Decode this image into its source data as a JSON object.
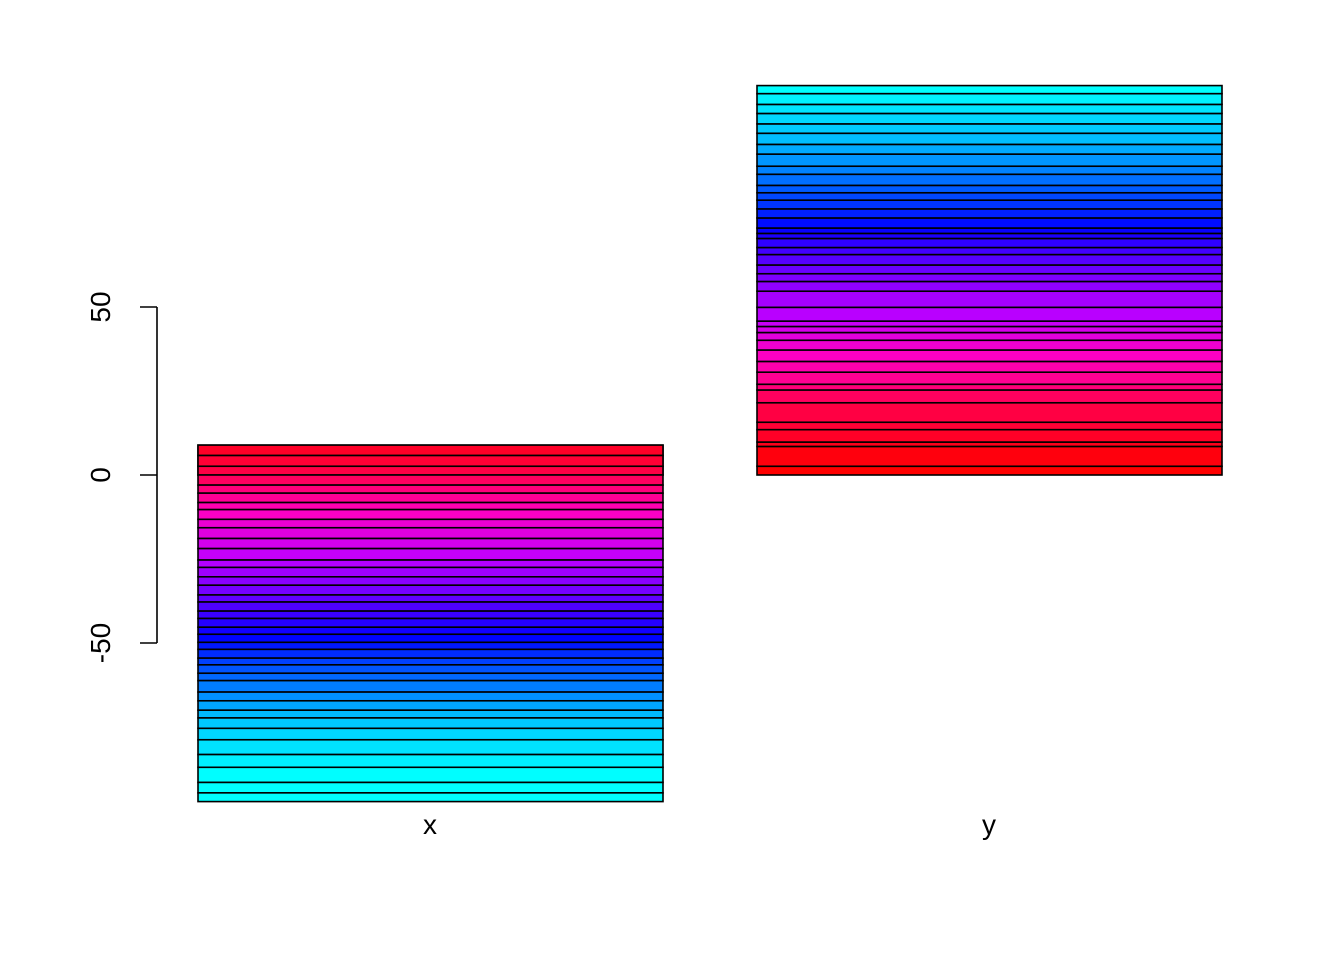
{
  "chart_data": {
    "type": "bar",
    "stacked": true,
    "categories": [
      "x",
      "y"
    ],
    "ylim": [
      -86,
      95
    ],
    "yticks": [
      -50,
      0,
      50
    ],
    "ytick_labels": [
      "-50",
      "0",
      "50"
    ],
    "title": "",
    "xlabel": "",
    "ylabel": "",
    "grid": false,
    "colors": {
      "segment_stroke": "#000000",
      "axis": "#000000",
      "palette_bottom_to_top_y": [
        "#ff0000",
        "#ff0040",
        "#ff00c0",
        "#c000ff",
        "#6000ff",
        "#0000ff",
        "#0060ff",
        "#00c0ff",
        "#00ffff"
      ]
    },
    "bars": [
      {
        "category": "x",
        "segments": [
          8.9,
          -3.1,
          -3.2,
          -2.6,
          -3.0,
          -2.4,
          -2.8,
          -2.1,
          -2.9,
          -2.5,
          -3.2,
          -3.0,
          -3.4,
          -2.2,
          -2.8,
          -2.5,
          -2.9,
          -2.1,
          -2.7,
          -2.2,
          -2.6,
          -2.1,
          -2.4,
          -2.1,
          -2.6,
          -2.0,
          -2.5,
          -2.2,
          -3.4,
          -2.6,
          -2.8,
          -2.3,
          -3.1,
          -3.4,
          -4.4,
          -3.8,
          -4.5,
          -3.1,
          -2.6
        ]
      },
      {
        "category": "y",
        "segments": [
          2.6,
          5.9,
          1.3,
          3.7,
          2.2,
          5.8,
          3.8,
          1.7,
          3.6,
          3.2,
          3.4,
          2.9,
          2.3,
          1.8,
          1.6,
          4.1,
          4.8,
          2.9,
          2.3,
          2.6,
          3.1,
          2.1,
          2.7,
          1.5,
          1.6,
          3.0,
          2.7,
          2.6,
          2.2,
          2.2,
          3.3,
          2.4,
          3.6,
          2.9,
          3.3,
          2.8,
          3.1,
          2.7,
          3.2,
          2.4
        ]
      }
    ]
  }
}
